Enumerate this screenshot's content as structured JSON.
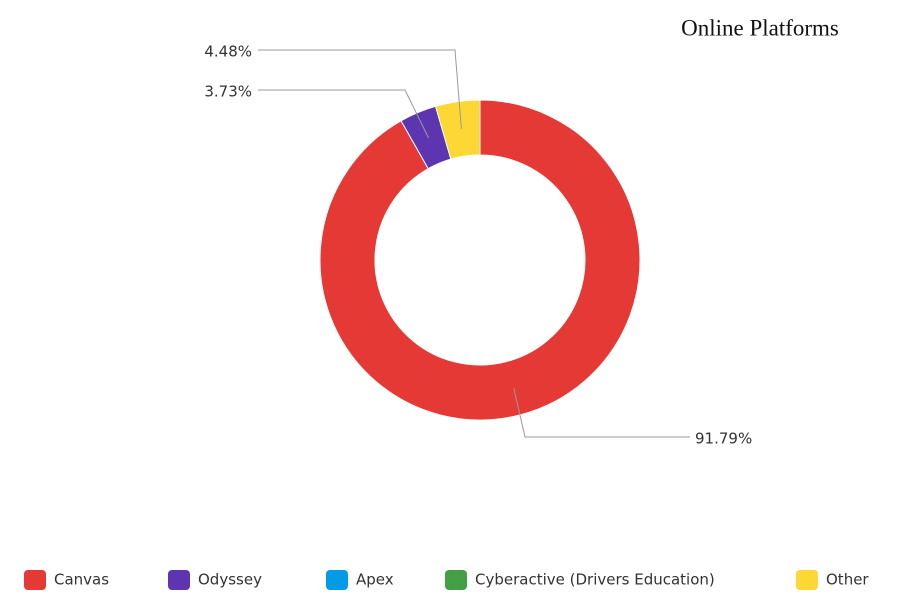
{
  "chart_data": {
    "type": "pie",
    "title": "Online Platforms",
    "categories": [
      "Canvas",
      "Odyssey",
      "Apex",
      "Cyberactive (Drivers Education)",
      "Other"
    ],
    "values": [
      91.79,
      3.73,
      0,
      0,
      4.48
    ],
    "value_labels": [
      "91.79%",
      "3.73%",
      null,
      null,
      "4.48%"
    ],
    "colors": [
      "#e53935",
      "#5e35b1",
      "#039be5",
      "#43a047",
      "#fdd835"
    ],
    "legend": "bottom"
  }
}
